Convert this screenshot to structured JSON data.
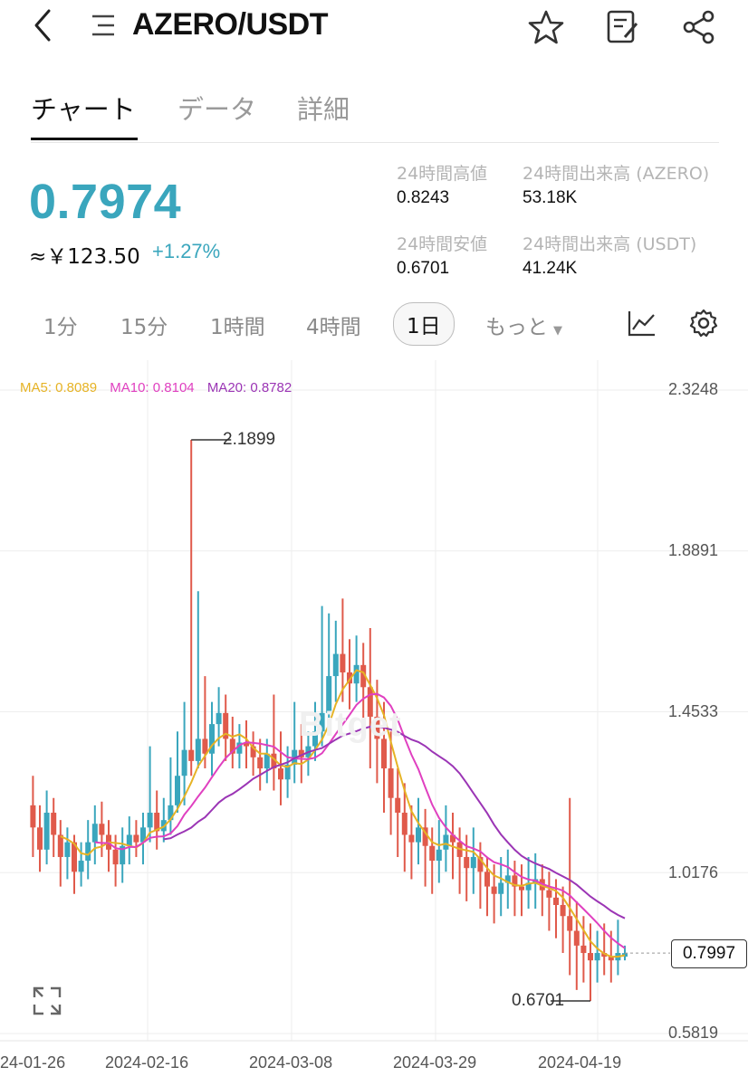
{
  "header": {
    "pair": "AZERO/USDT"
  },
  "tabs": [
    {
      "label": "チャート",
      "active": true
    },
    {
      "label": "データ",
      "active": false
    },
    {
      "label": "詳細",
      "active": false
    }
  ],
  "ticker": {
    "price": "0.7974",
    "fiat": "≈￥123.50",
    "change": "+1.27%",
    "high_label": "24時間高値",
    "high": "0.8243",
    "low_label": "24時間安値",
    "low": "0.6701",
    "vol_base_label": "24時間出来高 (AZERO)",
    "vol_base": "53.18K",
    "vol_quote_label": "24時間出来高 (USDT)",
    "vol_quote": "41.24K"
  },
  "intervals": [
    {
      "label": "1分"
    },
    {
      "label": "15分"
    },
    {
      "label": "1時間"
    },
    {
      "label": "4時間"
    },
    {
      "label": "1日",
      "active": true
    },
    {
      "label": "もっと"
    }
  ],
  "colors": {
    "up": "#3aa6bd",
    "down": "#e05a4b",
    "ma5": "#e6b325",
    "ma10": "#e040c0",
    "ma20": "#9b35b5"
  },
  "icons": {
    "back": "chevron-left-icon",
    "menu": "menu-icon",
    "star": "star-icon",
    "note": "note-edit-icon",
    "share": "share-icon",
    "indicator": "line-chart-icon",
    "settings": "gear-icon",
    "expand": "expand-icon"
  },
  "chart_data": {
    "type": "candlestick",
    "interval": "1日",
    "legend": {
      "ma5": "MA5: 0.8089",
      "ma10": "MA10: 0.8104",
      "ma20": "MA20: 0.8782"
    },
    "y_ticks": [
      "2.3248",
      "1.8891",
      "1.4533",
      "1.0176",
      "0.5819"
    ],
    "ylim": [
      0.5819,
      2.3248
    ],
    "x_ticks": [
      "2024-01-26",
      "2024-02-16",
      "2024-03-08",
      "2024-03-29",
      "2024-04-19"
    ],
    "last_price_tag": "0.7997",
    "high_marker": "2.1899",
    "low_marker": "0.6701",
    "watermark": "Bitget",
    "close": [
      1.14,
      1.08,
      1.18,
      1.12,
      1.06,
      1.1,
      1.02,
      1.05,
      1.1,
      1.15,
      1.12,
      1.08,
      1.04,
      1.09,
      1.12,
      1.1,
      1.14,
      1.18,
      1.13,
      1.16,
      1.2,
      1.28,
      1.35,
      1.32,
      1.38,
      1.34,
      1.42,
      1.45,
      1.38,
      1.34,
      1.37,
      1.36,
      1.33,
      1.3,
      1.34,
      1.3,
      1.27,
      1.31,
      1.35,
      1.33,
      1.36,
      1.4,
      1.45,
      1.55,
      1.61,
      1.56,
      1.53,
      1.58,
      1.52,
      1.44,
      1.38,
      1.3,
      1.22,
      1.18,
      1.12,
      1.1,
      1.14,
      1.09,
      1.05,
      1.08,
      1.12,
      1.1,
      1.06,
      1.03,
      1.06,
      1.02,
      0.98,
      0.96,
      0.99,
      1.01,
      0.98,
      0.97,
      0.99,
      1.0,
      0.97,
      0.95,
      0.93,
      0.9,
      0.86,
      0.82,
      0.8,
      0.78,
      0.8,
      0.79,
      0.78,
      0.8,
      0.7997
    ],
    "open": [
      1.2,
      1.14,
      1.08,
      1.18,
      1.12,
      1.06,
      1.1,
      1.02,
      1.05,
      1.1,
      1.15,
      1.12,
      1.08,
      1.04,
      1.09,
      1.12,
      1.1,
      1.14,
      1.18,
      1.13,
      1.16,
      1.2,
      1.28,
      1.35,
      1.32,
      1.38,
      1.34,
      1.42,
      1.45,
      1.38,
      1.34,
      1.37,
      1.36,
      1.33,
      1.3,
      1.34,
      1.3,
      1.27,
      1.31,
      1.35,
      1.33,
      1.36,
      1.4,
      1.45,
      1.55,
      1.61,
      1.56,
      1.53,
      1.58,
      1.52,
      1.44,
      1.38,
      1.3,
      1.22,
      1.18,
      1.12,
      1.1,
      1.14,
      1.09,
      1.05,
      1.08,
      1.12,
      1.1,
      1.06,
      1.03,
      1.06,
      1.02,
      0.98,
      0.96,
      0.99,
      1.01,
      0.98,
      0.97,
      0.99,
      1.0,
      0.97,
      0.95,
      0.93,
      0.9,
      0.86,
      0.82,
      0.8,
      0.78,
      0.8,
      0.79,
      0.78,
      0.79
    ],
    "high": [
      1.28,
      1.2,
      1.24,
      1.22,
      1.16,
      1.14,
      1.12,
      1.1,
      1.16,
      1.2,
      1.21,
      1.16,
      1.12,
      1.14,
      1.17,
      1.16,
      1.18,
      1.36,
      1.24,
      1.22,
      1.33,
      1.4,
      1.48,
      2.1899,
      1.78,
      1.55,
      1.48,
      1.52,
      1.5,
      1.44,
      1.42,
      1.43,
      1.4,
      1.38,
      1.38,
      1.5,
      1.4,
      1.36,
      1.48,
      1.42,
      1.4,
      1.48,
      1.74,
      1.72,
      1.7,
      1.76,
      1.65,
      1.66,
      1.64,
      1.68,
      1.54,
      1.48,
      1.4,
      1.3,
      1.26,
      1.2,
      1.22,
      1.19,
      1.14,
      1.16,
      1.2,
      1.18,
      1.14,
      1.12,
      1.14,
      1.1,
      1.06,
      1.04,
      1.06,
      1.08,
      1.05,
      1.04,
      1.06,
      1.07,
      1.04,
      1.02,
      1.0,
      0.98,
      1.22,
      0.94,
      0.9,
      0.88,
      0.86,
      0.88,
      0.86,
      0.89,
      0.82
    ],
    "low": [
      1.06,
      1.02,
      1.04,
      1.06,
      0.98,
      1.0,
      0.96,
      0.98,
      1.0,
      1.04,
      1.06,
      1.02,
      0.98,
      0.99,
      1.04,
      1.06,
      1.04,
      1.1,
      1.08,
      1.1,
      1.12,
      1.18,
      1.2,
      1.28,
      1.3,
      1.3,
      1.28,
      1.36,
      1.32,
      1.3,
      1.3,
      1.3,
      1.28,
      1.24,
      1.26,
      1.24,
      1.2,
      1.22,
      1.26,
      1.26,
      1.28,
      1.32,
      1.36,
      1.42,
      1.48,
      1.48,
      1.46,
      1.48,
      1.4,
      1.3,
      1.26,
      1.18,
      1.12,
      1.06,
      1.02,
      1.0,
      1.04,
      0.98,
      0.96,
      0.99,
      1.02,
      1.0,
      0.96,
      0.94,
      0.96,
      0.92,
      0.9,
      0.88,
      0.9,
      0.92,
      0.9,
      0.9,
      0.92,
      0.92,
      0.9,
      0.86,
      0.84,
      0.8,
      0.74,
      0.7,
      0.72,
      0.6701,
      0.72,
      0.74,
      0.72,
      0.74,
      0.78
    ]
  }
}
